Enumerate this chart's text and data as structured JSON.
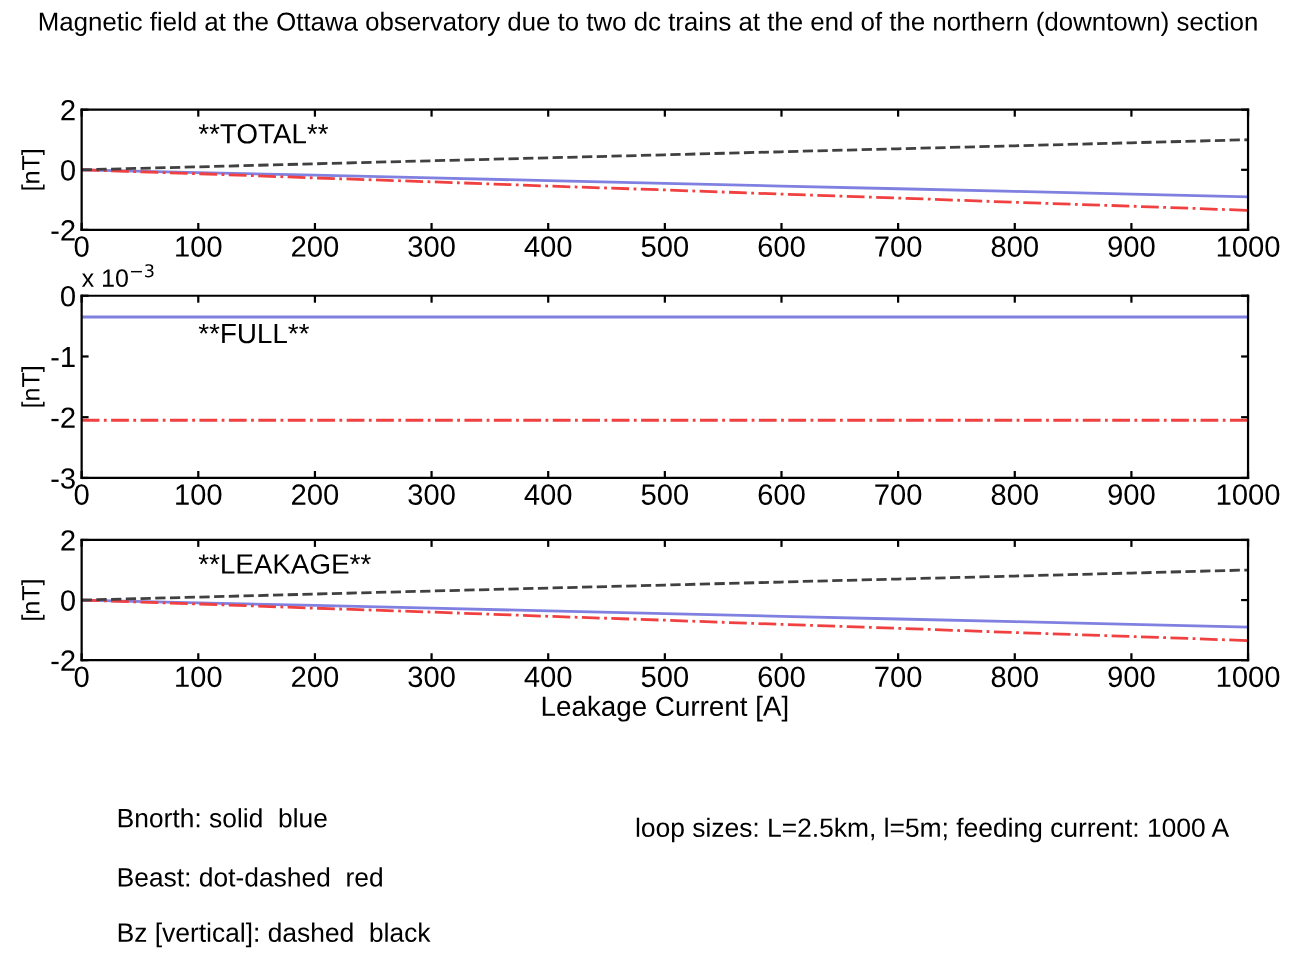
{
  "chart_data": [
    {
      "type": "line",
      "title": "Magnetic field at the Ottawa observatory due to two dc trains at the end of the northern (downtown) section",
      "ylabel": "[nT]",
      "annotations": [
        "**TOTAL**"
      ],
      "xlim": [
        0,
        1000
      ],
      "xticks": [
        0,
        100,
        200,
        300,
        400,
        500,
        600,
        700,
        800,
        900,
        1000
      ],
      "ylim": [
        -2,
        2
      ],
      "yticks": [
        -2,
        0,
        2
      ],
      "x": [
        0,
        100,
        200,
        300,
        400,
        500,
        600,
        700,
        800,
        900,
        1000
      ],
      "grid": false,
      "series": [
        {
          "color": "#8080e0",
          "line_style": "solid",
          "values": [
            0,
            -0.09,
            -0.18,
            -0.27,
            -0.36,
            -0.45,
            -0.54,
            -0.63,
            -0.72,
            -0.81,
            -0.9
          ]
        },
        {
          "color": "#f04040",
          "line_style": "dashdot",
          "values": [
            0,
            -0.13,
            -0.27,
            -0.4,
            -0.54,
            -0.67,
            -0.81,
            -0.94,
            -1.08,
            -1.21,
            -1.35
          ]
        },
        {
          "color": "#404040",
          "line_style": "dashed",
          "values": [
            0,
            0.1,
            0.2,
            0.3,
            0.4,
            0.5,
            0.6,
            0.7,
            0.8,
            0.9,
            1.0
          ]
        }
      ]
    },
    {
      "type": "line",
      "ylabel": "[nT]",
      "annotations": [
        "**FULL**",
        "x 10$^{−3}$"
      ],
      "xlim": [
        0,
        1000
      ],
      "xticks": [
        0,
        100,
        200,
        300,
        400,
        500,
        600,
        700,
        800,
        900,
        1000
      ],
      "ylim": [
        -3,
        0
      ],
      "yticks": [
        -3,
        -2,
        -1,
        0
      ],
      "x": [
        0,
        1000
      ],
      "grid": false,
      "series": [
        {
          "color": "#8080e0",
          "line_style": "solid",
          "values": [
            -0.35,
            -0.35
          ]
        },
        {
          "color": "#f04040",
          "line_style": "dashdot",
          "values": [
            -2.05,
            -2.05
          ]
        }
      ]
    },
    {
      "type": "line",
      "ylabel": "[nT]",
      "xlabel": "Leakage Current [A]",
      "annotations": [
        "**LEAKAGE**",
        "Bnorth: solid  blue",
        "Beast: dot-dashed  red",
        "Bz [vertical]: dashed  black",
        "loop sizes: L=2.5km, l=5m; feeding current: 1000 A"
      ],
      "xlim": [
        0,
        1000
      ],
      "xticks": [
        0,
        100,
        200,
        300,
        400,
        500,
        600,
        700,
        800,
        900,
        1000
      ],
      "ylim": [
        -2,
        2
      ],
      "yticks": [
        -2,
        0,
        2
      ],
      "x": [
        0,
        100,
        200,
        300,
        400,
        500,
        600,
        700,
        800,
        900,
        1000
      ],
      "grid": false,
      "series": [
        {
          "color": "#8080e0",
          "line_style": "solid",
          "values": [
            0,
            -0.09,
            -0.18,
            -0.27,
            -0.36,
            -0.45,
            -0.54,
            -0.63,
            -0.72,
            -0.81,
            -0.9
          ]
        },
        {
          "color": "#f04040",
          "line_style": "dashdot",
          "values": [
            0,
            -0.13,
            -0.27,
            -0.4,
            -0.54,
            -0.67,
            -0.81,
            -0.94,
            -1.08,
            -1.21,
            -1.35
          ]
        },
        {
          "color": "#404040",
          "line_style": "dashed",
          "values": [
            0,
            0.1,
            0.2,
            0.3,
            0.4,
            0.5,
            0.6,
            0.7,
            0.8,
            0.9,
            1.0
          ]
        }
      ]
    }
  ]
}
